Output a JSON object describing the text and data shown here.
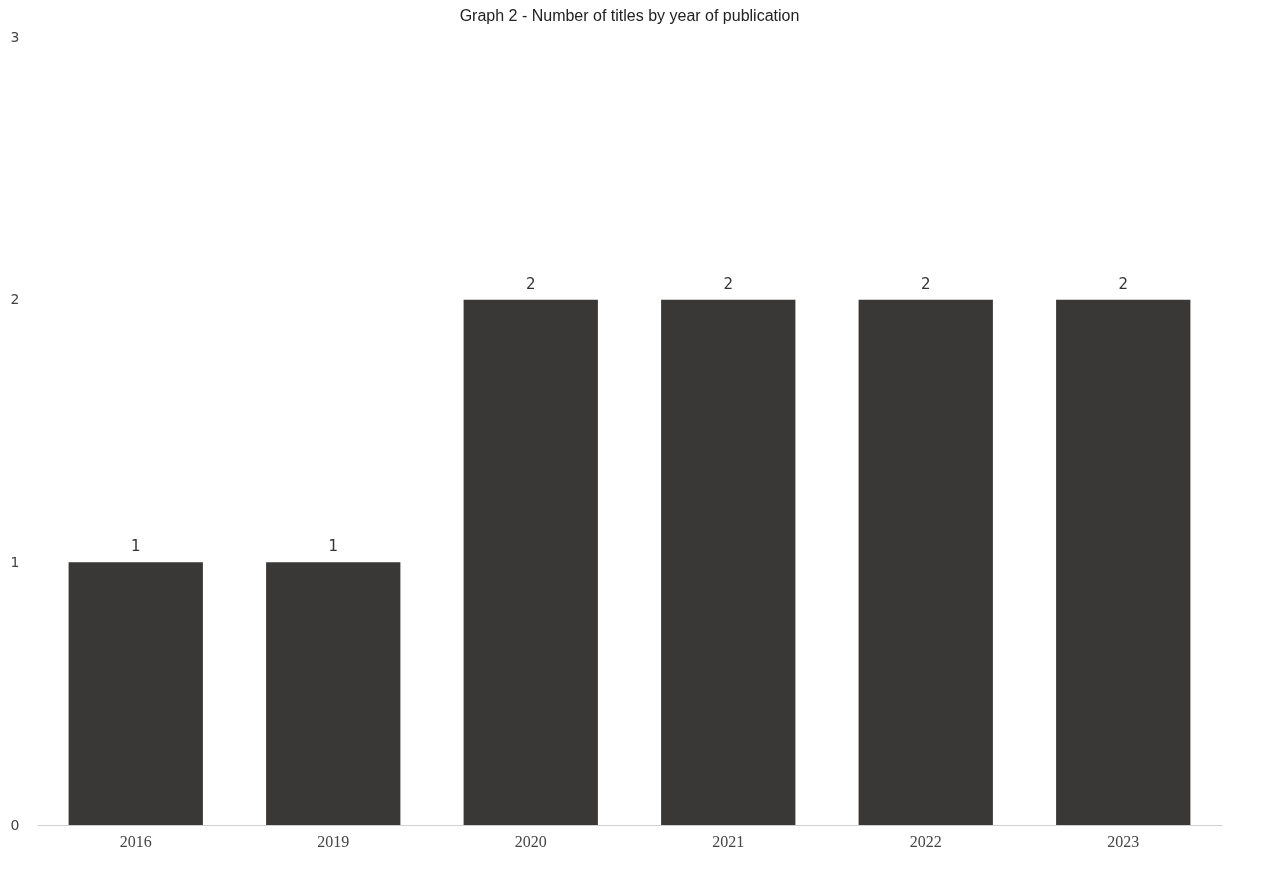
{
  "chart_data": {
    "type": "bar",
    "title": "Graph 2 - Number of titles by year of publication",
    "categories": [
      "2016",
      "2019",
      "2020",
      "2021",
      "2022",
      "2023"
    ],
    "values": [
      1,
      1,
      2,
      2,
      2,
      2
    ],
    "color": "#3a3836",
    "ylim": [
      0,
      3
    ],
    "yticks": [
      0,
      1,
      2,
      3
    ],
    "grid": false,
    "data_labels": true
  }
}
